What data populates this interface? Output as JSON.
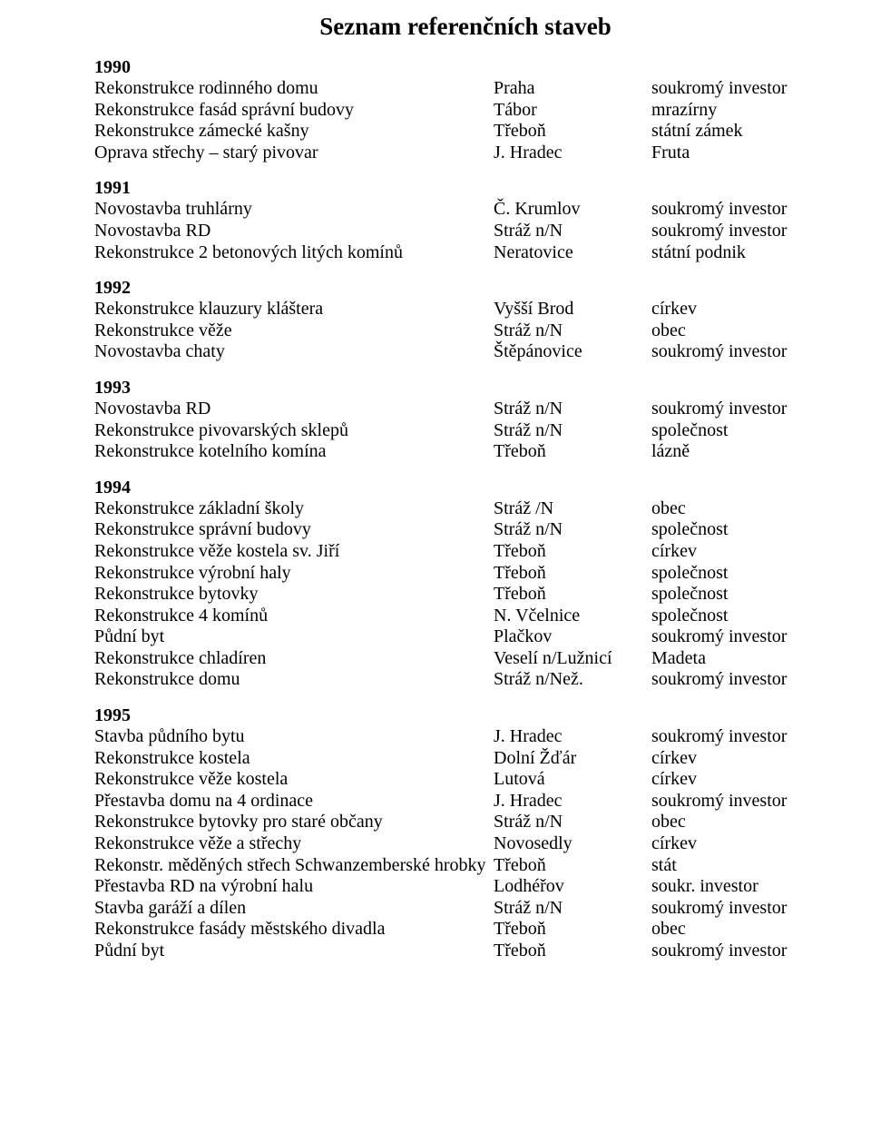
{
  "title": "Seznam referenčních staveb",
  "sections": [
    {
      "year": "1990",
      "rows": [
        {
          "desc": "Rekonstrukce rodinného domu",
          "loc": "Praha",
          "inv": "soukromý investor"
        },
        {
          "desc": "Rekonstrukce fasád správní budovy",
          "loc": "Tábor",
          "inv": "mrazírny"
        },
        {
          "desc": "Rekonstrukce zámecké kašny",
          "loc": "Třeboň",
          "inv": "státní zámek"
        },
        {
          "desc": "Oprava střechy – starý pivovar",
          "loc": "J. Hradec",
          "inv": "Fruta"
        }
      ]
    },
    {
      "year": "1991",
      "rows": [
        {
          "desc": "Novostavba truhlárny",
          "loc": "Č. Krumlov",
          "inv": "soukromý investor"
        },
        {
          "desc": "Novostavba RD",
          "loc": "Stráž  n/N",
          "inv": "soukromý investor"
        },
        {
          "desc": "Rekonstrukce 2 betonových litých komínů",
          "loc": "Neratovice",
          "inv": "státní podnik"
        }
      ]
    },
    {
      "year": "1992",
      "rows": [
        {
          "desc": "Rekonstrukce klauzury kláštera",
          "loc": "Vyšší Brod",
          "inv": "církev"
        },
        {
          "desc": "Rekonstrukce věže",
          "loc": "Stráž n/N",
          "inv": "obec"
        },
        {
          "desc": "Novostavba chaty",
          "loc": "Štěpánovice",
          "inv": "soukromý investor"
        }
      ]
    },
    {
      "year": "1993",
      "rows": [
        {
          "desc": "Novostavba RD",
          "loc": "Stráž  n/N",
          "inv": "soukromý investor"
        },
        {
          "desc": "Rekonstrukce pivovarských sklepů",
          "loc": "Stráž n/N",
          "inv": "společnost"
        },
        {
          "desc": "Rekonstrukce kotelního komína",
          "loc": "Třeboň",
          "inv": "lázně"
        }
      ]
    },
    {
      "year": "1994",
      "rows": [
        {
          "desc": "Rekonstrukce základní školy",
          "loc": "Stráž /N",
          "inv": "obec"
        },
        {
          "desc": "Rekonstrukce správní budovy",
          "loc": "Stráž n/N",
          "inv": "společnost"
        },
        {
          "desc": "Rekonstrukce věže kostela sv. Jiří",
          "loc": "Třeboň",
          "inv": "církev"
        },
        {
          "desc": "Rekonstrukce výrobní haly",
          "loc": "Třeboň",
          "inv": "společnost"
        },
        {
          "desc": "Rekonstrukce bytovky",
          "loc": "Třeboň",
          "inv": "společnost"
        },
        {
          "desc": "Rekonstrukce 4 komínů",
          "loc": "N. Včelnice",
          "inv": "společnost"
        },
        {
          "desc": "Půdní byt",
          "loc": "Plačkov",
          "inv": "soukromý investor"
        },
        {
          "desc": "Rekonstrukce chladíren",
          "loc": "Veselí n/Lužnicí",
          "inv": "Madeta"
        },
        {
          "desc": "Rekonstrukce domu",
          "loc": "Stráž n/Než.",
          "inv": "soukromý investor"
        }
      ]
    },
    {
      "year": "1995",
      "rows": [
        {
          "desc": "Stavba půdního bytu",
          "loc": "J. Hradec",
          "inv": "soukromý investor"
        },
        {
          "desc": "Rekonstrukce kostela",
          "loc": "Dolní Žďár",
          "inv": "církev"
        },
        {
          "desc": "Rekonstrukce věže kostela",
          "loc": "Lutová",
          "inv": "církev"
        },
        {
          "desc": "Přestavba domu na 4 ordinace",
          "loc": "J. Hradec",
          "inv": "soukromý investor"
        },
        {
          "desc": "Rekonstrukce bytovky pro staré občany",
          "loc": "Stráž n/N",
          "inv": "obec"
        },
        {
          "desc": "Rekonstrukce věže a střechy",
          "loc": "Novosedly",
          "inv": "církev"
        },
        {
          "desc": "Rekonstr. měděných střech Schwanzemberské hrobky",
          "loc": "Třeboň",
          "inv": "stát"
        },
        {
          "desc": "Přestavba RD na výrobní halu",
          "loc": "Lodhéřov",
          "inv": "soukr. investor"
        },
        {
          "desc": "Stavba garáží a dílen",
          "loc": "Stráž n/N",
          "inv": "soukromý investor"
        },
        {
          "desc": "Rekonstrukce fasády městského divadla",
          "loc": "Třeboň",
          "inv": "obec"
        },
        {
          "desc": "Půdní byt",
          "loc": "Třeboň",
          "inv": "soukromý investor"
        }
      ]
    }
  ]
}
